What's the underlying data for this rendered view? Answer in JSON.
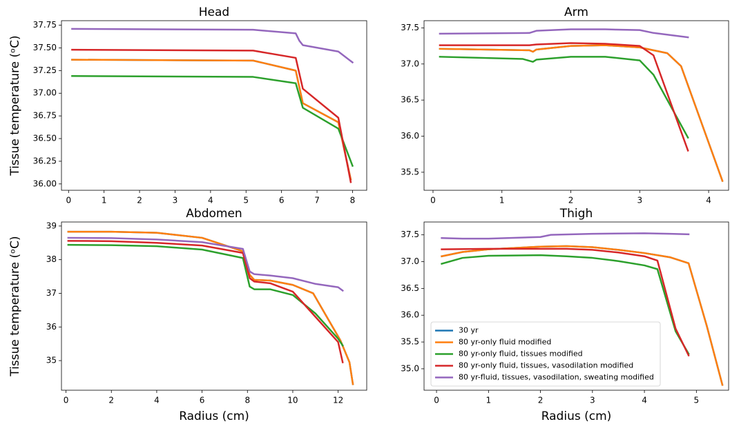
{
  "chart_data": [
    {
      "type": "line",
      "title": "Head",
      "ylabel": "Tissue temperature (ᵒC)",
      "xlim": [
        -0.2,
        8.4
      ],
      "ylim": [
        35.93,
        37.8
      ],
      "xticks": [
        0,
        1,
        2,
        3,
        4,
        5,
        6,
        7,
        8
      ],
      "yticks": [
        {
          "value": 36.0,
          "label": "36.00"
        },
        36.25,
        {
          "value": 36.5,
          "label": "36.50"
        },
        36.75,
        {
          "value": 37.0,
          "label": "37.00"
        },
        37.25,
        {
          "value": 37.5,
          "label": "37.50"
        },
        37.75
      ],
      "series": [
        {
          "color": "#1f77b4",
          "x": [
            0.1,
            5.2,
            6.4,
            6.6,
            7.6,
            7.95
          ],
          "values": [
            37.37,
            37.36,
            37.25,
            36.89,
            36.68,
            36.05
          ]
        },
        {
          "color": "#ff7f0e",
          "x": [
            0.1,
            5.2,
            6.4,
            6.6,
            7.6,
            7.95
          ],
          "values": [
            37.37,
            37.36,
            37.25,
            36.89,
            36.68,
            36.05
          ]
        },
        {
          "color": "#2ca02c",
          "x": [
            0.1,
            5.2,
            6.4,
            6.6,
            7.6,
            8.0
          ],
          "values": [
            37.19,
            37.18,
            37.11,
            36.84,
            36.61,
            36.2
          ]
        },
        {
          "color": "#d62728",
          "x": [
            0.1,
            5.2,
            6.4,
            6.6,
            7.6,
            7.95
          ],
          "values": [
            37.48,
            37.47,
            37.39,
            37.05,
            36.73,
            36.02
          ]
        },
        {
          "color": "#9467bd",
          "x": [
            0.1,
            5.2,
            6.4,
            6.5,
            6.6,
            7.6,
            8.0
          ],
          "values": [
            37.71,
            37.7,
            37.66,
            37.58,
            37.53,
            37.46,
            37.34
          ]
        }
      ]
    },
    {
      "type": "line",
      "title": "Arm",
      "xlim": [
        -0.13,
        4.29
      ],
      "ylim": [
        35.25,
        37.6
      ],
      "xticks": [
        0,
        1,
        2,
        3,
        4
      ],
      "yticks": [
        35.5,
        {
          "value": 36.0,
          "label": "36.0"
        },
        36.5,
        {
          "value": 37.0,
          "label": "37.0"
        },
        37.5
      ],
      "series": [
        {
          "color": "#1f77b4",
          "x": [
            0.1,
            1.4,
            1.45,
            1.5,
            2.0,
            2.5,
            3.0,
            3.4,
            3.6,
            4.2
          ],
          "values": [
            37.21,
            37.19,
            37.17,
            37.2,
            37.25,
            37.26,
            37.23,
            37.15,
            36.97,
            35.38
          ]
        },
        {
          "color": "#ff7f0e",
          "x": [
            0.1,
            1.4,
            1.45,
            1.5,
            2.0,
            2.5,
            3.0,
            3.4,
            3.6,
            4.2
          ],
          "values": [
            37.21,
            37.19,
            37.17,
            37.2,
            37.25,
            37.26,
            37.23,
            37.15,
            36.97,
            35.38
          ]
        },
        {
          "color": "#2ca02c",
          "x": [
            0.1,
            1.3,
            1.45,
            1.5,
            2.0,
            2.5,
            3.0,
            3.2,
            3.7
          ],
          "values": [
            37.1,
            37.07,
            37.03,
            37.06,
            37.1,
            37.1,
            37.05,
            36.85,
            35.98
          ]
        },
        {
          "color": "#d62728",
          "x": [
            0.1,
            1.4,
            1.5,
            2.0,
            2.5,
            3.0,
            3.2,
            3.7
          ],
          "values": [
            37.26,
            37.26,
            37.27,
            37.29,
            37.28,
            37.25,
            37.12,
            35.8
          ]
        },
        {
          "color": "#9467bd",
          "x": [
            0.1,
            1.4,
            1.5,
            2.0,
            2.5,
            3.0,
            3.2,
            3.7
          ],
          "values": [
            37.42,
            37.43,
            37.46,
            37.48,
            37.48,
            37.47,
            37.43,
            37.37
          ]
        }
      ]
    },
    {
      "type": "line",
      "title": "Abdomen",
      "ylabel": "Tissue temperature (ᵒC)",
      "xlabel": "Radius (cm)",
      "xlim": [
        -0.2,
        13.26
      ],
      "ylim": [
        34.12,
        39.12
      ],
      "xticks": [
        0,
        2,
        4,
        6,
        8,
        10,
        12
      ],
      "yticks": [
        35,
        36,
        37,
        38,
        39
      ],
      "series": [
        {
          "color": "#1f77b4",
          "x": [
            0.1,
            2,
            4,
            6,
            7.8,
            8.1,
            8.3,
            9,
            10,
            10.9,
            12.1,
            12.5,
            12.65
          ],
          "values": [
            38.83,
            38.83,
            38.8,
            38.65,
            38.25,
            37.55,
            37.4,
            37.38,
            37.25,
            37.0,
            35.6,
            34.95,
            34.3
          ]
        },
        {
          "color": "#ff7f0e",
          "x": [
            0.1,
            2,
            4,
            6,
            7.8,
            8.1,
            8.3,
            9,
            10,
            10.9,
            12.1,
            12.5,
            12.65
          ],
          "values": [
            38.83,
            38.83,
            38.8,
            38.65,
            38.25,
            37.55,
            37.4,
            37.38,
            37.25,
            37.0,
            35.6,
            34.95,
            34.3
          ]
        },
        {
          "color": "#2ca02c",
          "x": [
            0.1,
            2,
            4,
            6,
            7.8,
            8.1,
            8.3,
            9,
            10,
            11,
            12,
            12.2
          ],
          "values": [
            38.44,
            38.43,
            38.4,
            38.3,
            38.05,
            37.2,
            37.12,
            37.12,
            36.95,
            36.4,
            35.65,
            35.45
          ]
        },
        {
          "color": "#d62728",
          "x": [
            0.1,
            2,
            4,
            6,
            7.8,
            8.1,
            8.3,
            9,
            10,
            11,
            12,
            12.2
          ],
          "values": [
            38.56,
            38.55,
            38.5,
            38.42,
            38.2,
            37.45,
            37.35,
            37.3,
            37.05,
            36.3,
            35.55,
            34.95
          ]
        },
        {
          "color": "#9467bd",
          "x": [
            0.1,
            2,
            4,
            6,
            7.8,
            8.1,
            8.3,
            9,
            10,
            11,
            12,
            12.2
          ],
          "values": [
            38.65,
            38.64,
            38.6,
            38.52,
            38.32,
            37.65,
            37.57,
            37.53,
            37.45,
            37.28,
            37.18,
            37.08
          ]
        }
      ]
    },
    {
      "type": "line",
      "title": "Thigh",
      "xlabel": "Radius (cm)",
      "legend": "lower left",
      "xlim": [
        -0.24,
        5.62
      ],
      "ylim": [
        34.6,
        37.74
      ],
      "xticks": [
        0,
        1,
        2,
        3,
        4,
        5
      ],
      "yticks": [
        {
          "value": 35.0,
          "label": "35.0"
        },
        35.5,
        {
          "value": 36.0,
          "label": "36.0"
        },
        36.5,
        {
          "value": 37.0,
          "label": "37.0"
        },
        37.5
      ],
      "series": [
        {
          "name": "30 yr",
          "color": "#1f77b4",
          "x": [
            0.1,
            0.5,
            1,
            2,
            2.5,
            3,
            3.5,
            4,
            4.5,
            4.85,
            5.2,
            5.5
          ],
          "values": [
            37.1,
            37.18,
            37.23,
            37.28,
            37.29,
            37.27,
            37.22,
            37.16,
            37.08,
            36.97,
            35.8,
            34.7
          ]
        },
        {
          "name": "80 yr-only fluid modified",
          "color": "#ff7f0e",
          "x": [
            0.1,
            0.5,
            1,
            2,
            2.5,
            3,
            3.5,
            4,
            4.5,
            4.85,
            5.2,
            5.5
          ],
          "values": [
            37.1,
            37.18,
            37.23,
            37.28,
            37.29,
            37.27,
            37.22,
            37.16,
            37.08,
            36.97,
            35.8,
            34.7
          ]
        },
        {
          "name": "80 yr-only fluid, tissues modified",
          "color": "#2ca02c",
          "x": [
            0.1,
            0.5,
            1,
            2,
            2.5,
            3,
            3.5,
            4,
            4.25,
            4.6,
            4.85
          ],
          "values": [
            36.96,
            37.07,
            37.11,
            37.12,
            37.1,
            37.07,
            37.01,
            36.93,
            36.86,
            35.7,
            35.28
          ]
        },
        {
          "name": "80 yr-only fluid, tissues, vasodilation modified",
          "color": "#d62728",
          "x": [
            0.1,
            1,
            2,
            2.5,
            3,
            3.5,
            4,
            4.25,
            4.6,
            4.85
          ],
          "values": [
            37.23,
            37.24,
            37.24,
            37.24,
            37.22,
            37.17,
            37.1,
            37.02,
            35.75,
            35.25
          ]
        },
        {
          "name": "80 yr-fluid, tissues, vasodilation, sweating modified",
          "color": "#9467bd",
          "x": [
            0.1,
            0.5,
            1,
            2,
            2.2,
            3,
            4,
            4.5,
            4.85
          ],
          "values": [
            37.44,
            37.43,
            37.43,
            37.46,
            37.5,
            37.52,
            37.53,
            37.52,
            37.51
          ]
        }
      ]
    }
  ]
}
